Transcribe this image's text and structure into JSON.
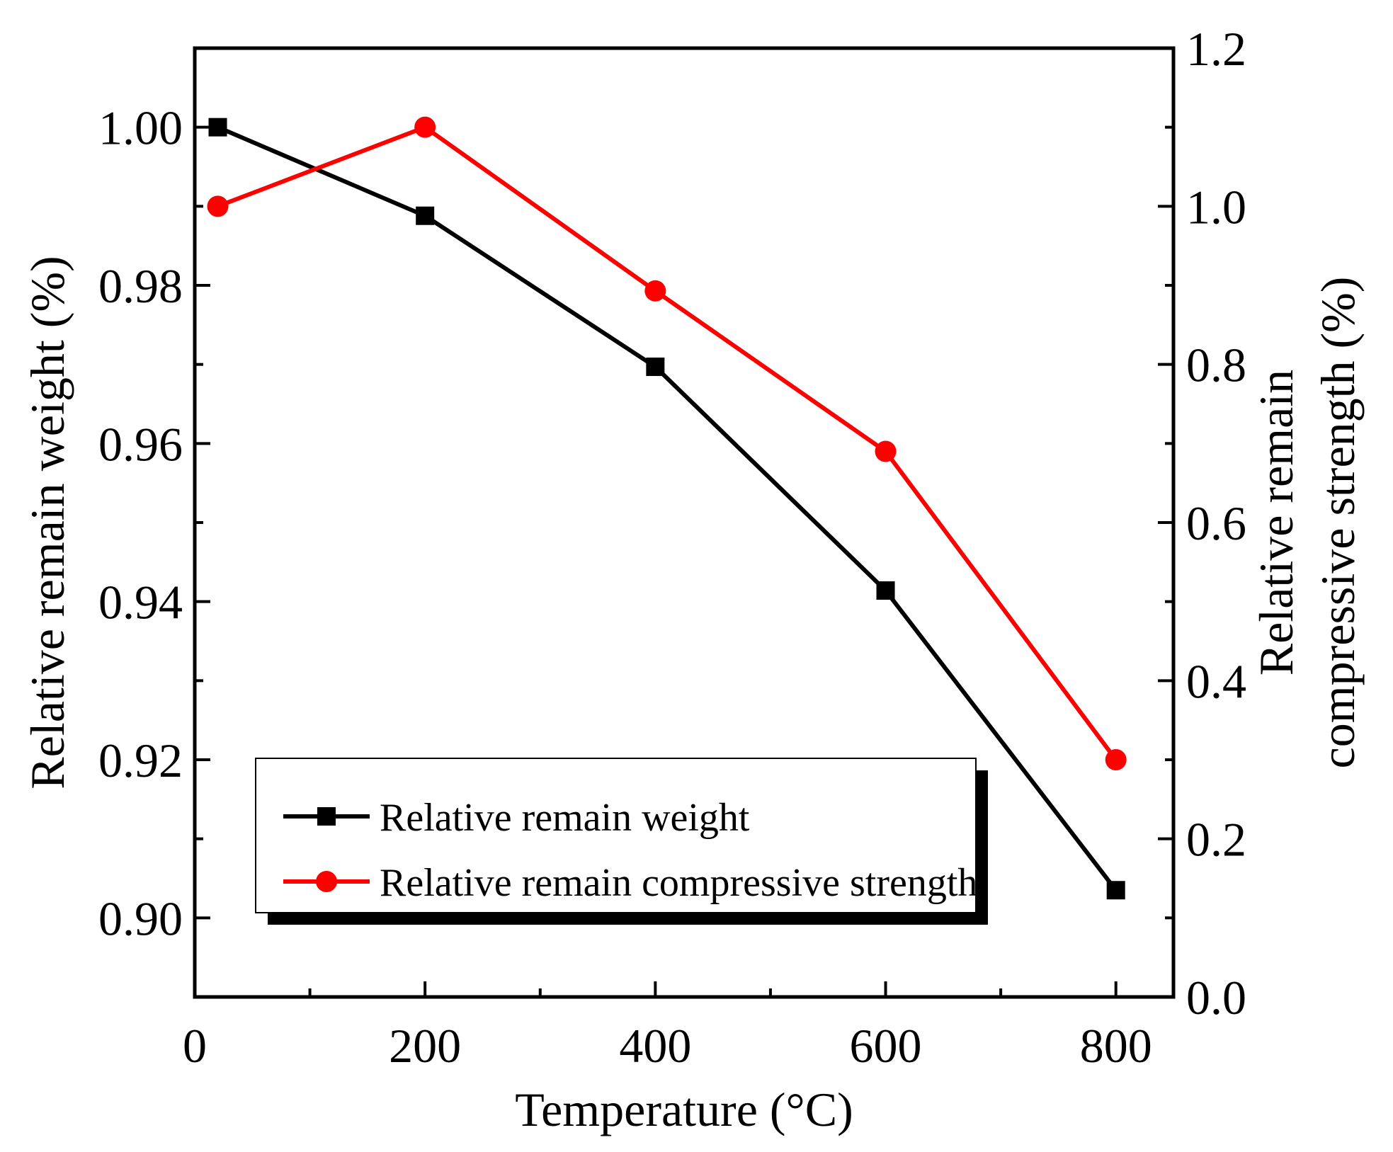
{
  "chart_data": {
    "type": "line",
    "xlabel": "Temperature (°C)",
    "ylabel": "Relative remain weight (%)",
    "y2label_line1": "Relative remain",
    "y2label_line2": "compressive strength (%)",
    "xlim": [
      0,
      850
    ],
    "ylim": [
      0.89,
      1.01
    ],
    "y2lim": [
      0.0,
      1.2
    ],
    "xticks": [
      0,
      200,
      400,
      600,
      800
    ],
    "xtick_labels": [
      "0",
      "200",
      "400",
      "600",
      "800"
    ],
    "yticks": [
      0.9,
      0.92,
      0.94,
      0.96,
      0.98,
      1.0
    ],
    "ytick_labels": [
      "0.90",
      "0.92",
      "0.94",
      "0.96",
      "0.98",
      "1.00"
    ],
    "y2ticks": [
      0.0,
      0.2,
      0.4,
      0.6,
      0.8,
      1.0,
      1.2
    ],
    "y2tick_labels": [
      "0.0",
      "0.2",
      "0.4",
      "0.6",
      "0.8",
      "1.0",
      "1.2"
    ],
    "series": [
      {
        "name": "Relative remain weight",
        "axis": "left",
        "color": "#000000",
        "marker": "square",
        "x": [
          20,
          200,
          400,
          600,
          800
        ],
        "y": [
          1.0,
          0.9888,
          0.9697,
          0.9414,
          0.9035
        ]
      },
      {
        "name": "Relative remain compressive strength",
        "axis": "right",
        "color": "#ff0000",
        "marker": "circle",
        "x": [
          20,
          200,
          400,
          600,
          800
        ],
        "y": [
          1.0,
          1.1,
          0.893,
          0.69,
          0.3
        ]
      }
    ],
    "legend": {
      "position": "bottom-left",
      "entries": [
        "Relative remain weight",
        "Relative remain compressive strength"
      ]
    }
  }
}
